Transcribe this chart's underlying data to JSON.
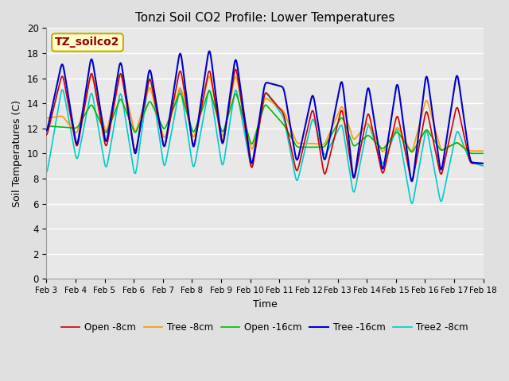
{
  "title": "Tonzi Soil CO2 Profile: Lower Temperatures",
  "xlabel": "Time",
  "ylabel": "Soil Temperatures (C)",
  "ylim": [
    0,
    20
  ],
  "xlim_days": [
    3,
    18
  ],
  "annotation_text": "TZ_soilco2",
  "annotation_color": "#990000",
  "annotation_bg": "#ffffcc",
  "annotation_border": "#ccaa00",
  "background_color": "#e0e0e0",
  "plot_bg_color": "#e8e8e8",
  "grid_color": "#ffffff",
  "series": {
    "Open -8cm": {
      "color": "#cc0000",
      "lw": 1.2
    },
    "Tree -8cm": {
      "color": "#ff9900",
      "lw": 1.2
    },
    "Open -16cm": {
      "color": "#00bb00",
      "lw": 1.2
    },
    "Tree -16cm": {
      "color": "#0000cc",
      "lw": 1.5
    },
    "Tree2 -8cm": {
      "color": "#00cccc",
      "lw": 1.2
    }
  },
  "xtick_labels": [
    "Feb 3",
    "Feb 4",
    "Feb 5",
    "Feb 6",
    "Feb 7",
    "Feb 8",
    "Feb 9",
    "Feb 10",
    "Feb 11",
    "Feb 12",
    "Feb 13",
    "Feb 14",
    "Feb 15",
    "Feb 16",
    "Feb 17",
    "Feb 18"
  ],
  "xtick_positions": [
    3,
    4,
    5,
    6,
    7,
    8,
    9,
    10,
    11,
    12,
    13,
    14,
    15,
    16,
    17,
    18
  ]
}
